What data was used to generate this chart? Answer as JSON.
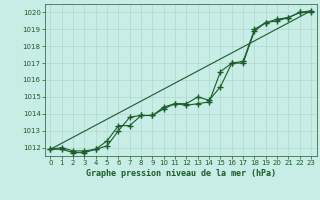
{
  "title": "Graphe pression niveau de la mer (hPa)",
  "bg_color": "#c8ece6",
  "grid_color": "#b0d8cc",
  "line_color": "#1a5c28",
  "xlim": [
    -0.5,
    23.5
  ],
  "ylim": [
    1011.5,
    1020.5
  ],
  "xticks": [
    0,
    1,
    2,
    3,
    4,
    5,
    6,
    7,
    8,
    9,
    10,
    11,
    12,
    13,
    14,
    15,
    16,
    17,
    18,
    19,
    20,
    21,
    22,
    23
  ],
  "yticks": [
    1012,
    1013,
    1014,
    1015,
    1016,
    1017,
    1018,
    1019,
    1020
  ],
  "series1_x": [
    0,
    1,
    2,
    3,
    4,
    5,
    6,
    7,
    8,
    9,
    10,
    11,
    12,
    13,
    14,
    15,
    16,
    17,
    18,
    19,
    20,
    21,
    22,
    23
  ],
  "series1_y": [
    1011.9,
    1012.0,
    1011.8,
    1011.8,
    1011.9,
    1012.1,
    1013.0,
    1013.8,
    1013.9,
    1013.9,
    1014.4,
    1014.6,
    1014.6,
    1015.0,
    1014.8,
    1015.6,
    1017.0,
    1017.1,
    1019.0,
    1019.4,
    1019.6,
    1019.7,
    1020.0,
    1020.1
  ],
  "series2_x": [
    0,
    1,
    2,
    3,
    4,
    5,
    6,
    7,
    8,
    9,
    10,
    11,
    12,
    13,
    14,
    15,
    16,
    17,
    18,
    19,
    20,
    21,
    22,
    23
  ],
  "series2_y": [
    1011.9,
    1011.9,
    1011.7,
    1011.7,
    1011.9,
    1012.4,
    1013.3,
    1013.3,
    1013.9,
    1013.9,
    1014.3,
    1014.6,
    1014.5,
    1014.6,
    1014.7,
    1016.5,
    1017.0,
    1017.0,
    1018.9,
    1019.4,
    1019.5,
    1019.7,
    1020.0,
    1020.0
  ],
  "trend_x": [
    0,
    23
  ],
  "trend_y": [
    1011.9,
    1020.1
  ]
}
